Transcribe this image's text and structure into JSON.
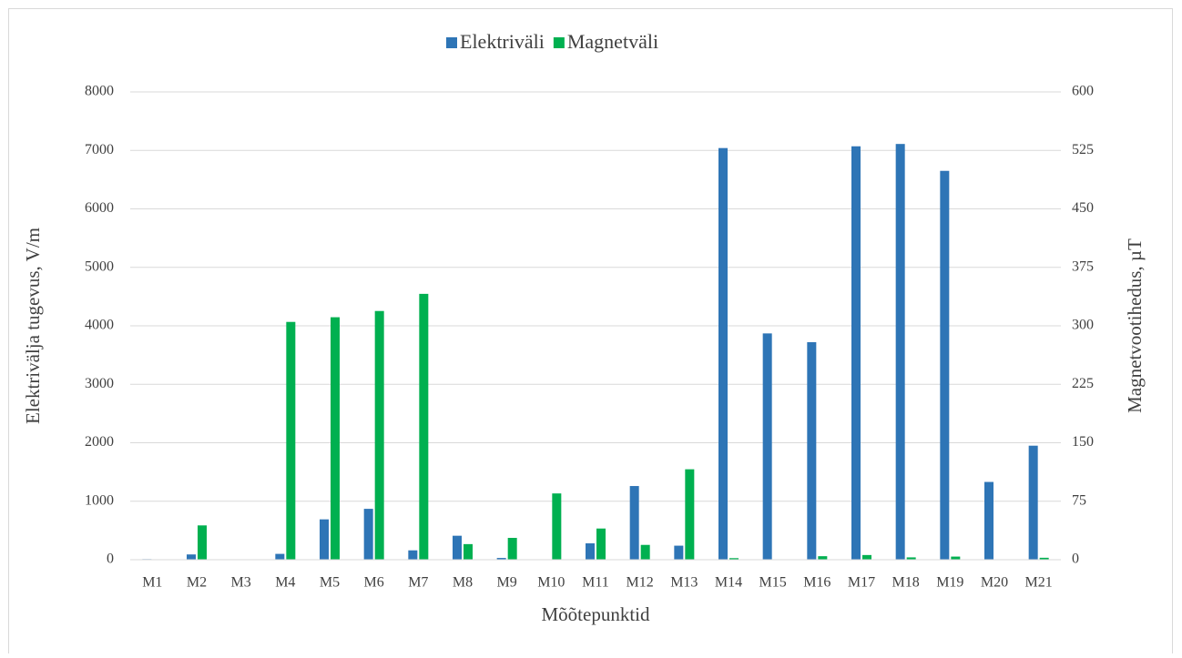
{
  "chart_data": {
    "type": "bar",
    "categories": [
      "M1",
      "M2",
      "M3",
      "M4",
      "M5",
      "M6",
      "M7",
      "M8",
      "M9",
      "M10",
      "M11",
      "M12",
      "M13",
      "M14",
      "M15",
      "M16",
      "M17",
      "M18",
      "M19",
      "M20",
      "M21"
    ],
    "series": [
      {
        "name": "Elektriväli",
        "color": "#2e75b6",
        "values": [
          10,
          90,
          0,
          100,
          690,
          870,
          160,
          410,
          30,
          0,
          280,
          1260,
          240,
          7040,
          3870,
          3720,
          7070,
          7110,
          6650,
          1330,
          1950
        ]
      },
      {
        "name": "Magnetväli",
        "color": "#00b050",
        "axis": "y2",
        "values": [
          0,
          44,
          0,
          305,
          311,
          319,
          341,
          20,
          28,
          85,
          40,
          19,
          116,
          2,
          0,
          4.5,
          6,
          3,
          4,
          0,
          2.5
        ]
      }
    ],
    "ylim": [
      0,
      8000
    ],
    "yticks": [
      0,
      1000,
      2000,
      3000,
      4000,
      5000,
      6000,
      7000,
      8000
    ],
    "y2lim": [
      0,
      600
    ],
    "y2ticks": [
      0,
      75,
      150,
      225,
      300,
      375,
      450,
      525,
      600
    ],
    "x_label": "Mõõtepunktid",
    "y_label": "Elektrivälja tugevus,  V/m",
    "y2_label": "Magnetvootihedus, µT",
    "grid": true,
    "legend": "top"
  }
}
